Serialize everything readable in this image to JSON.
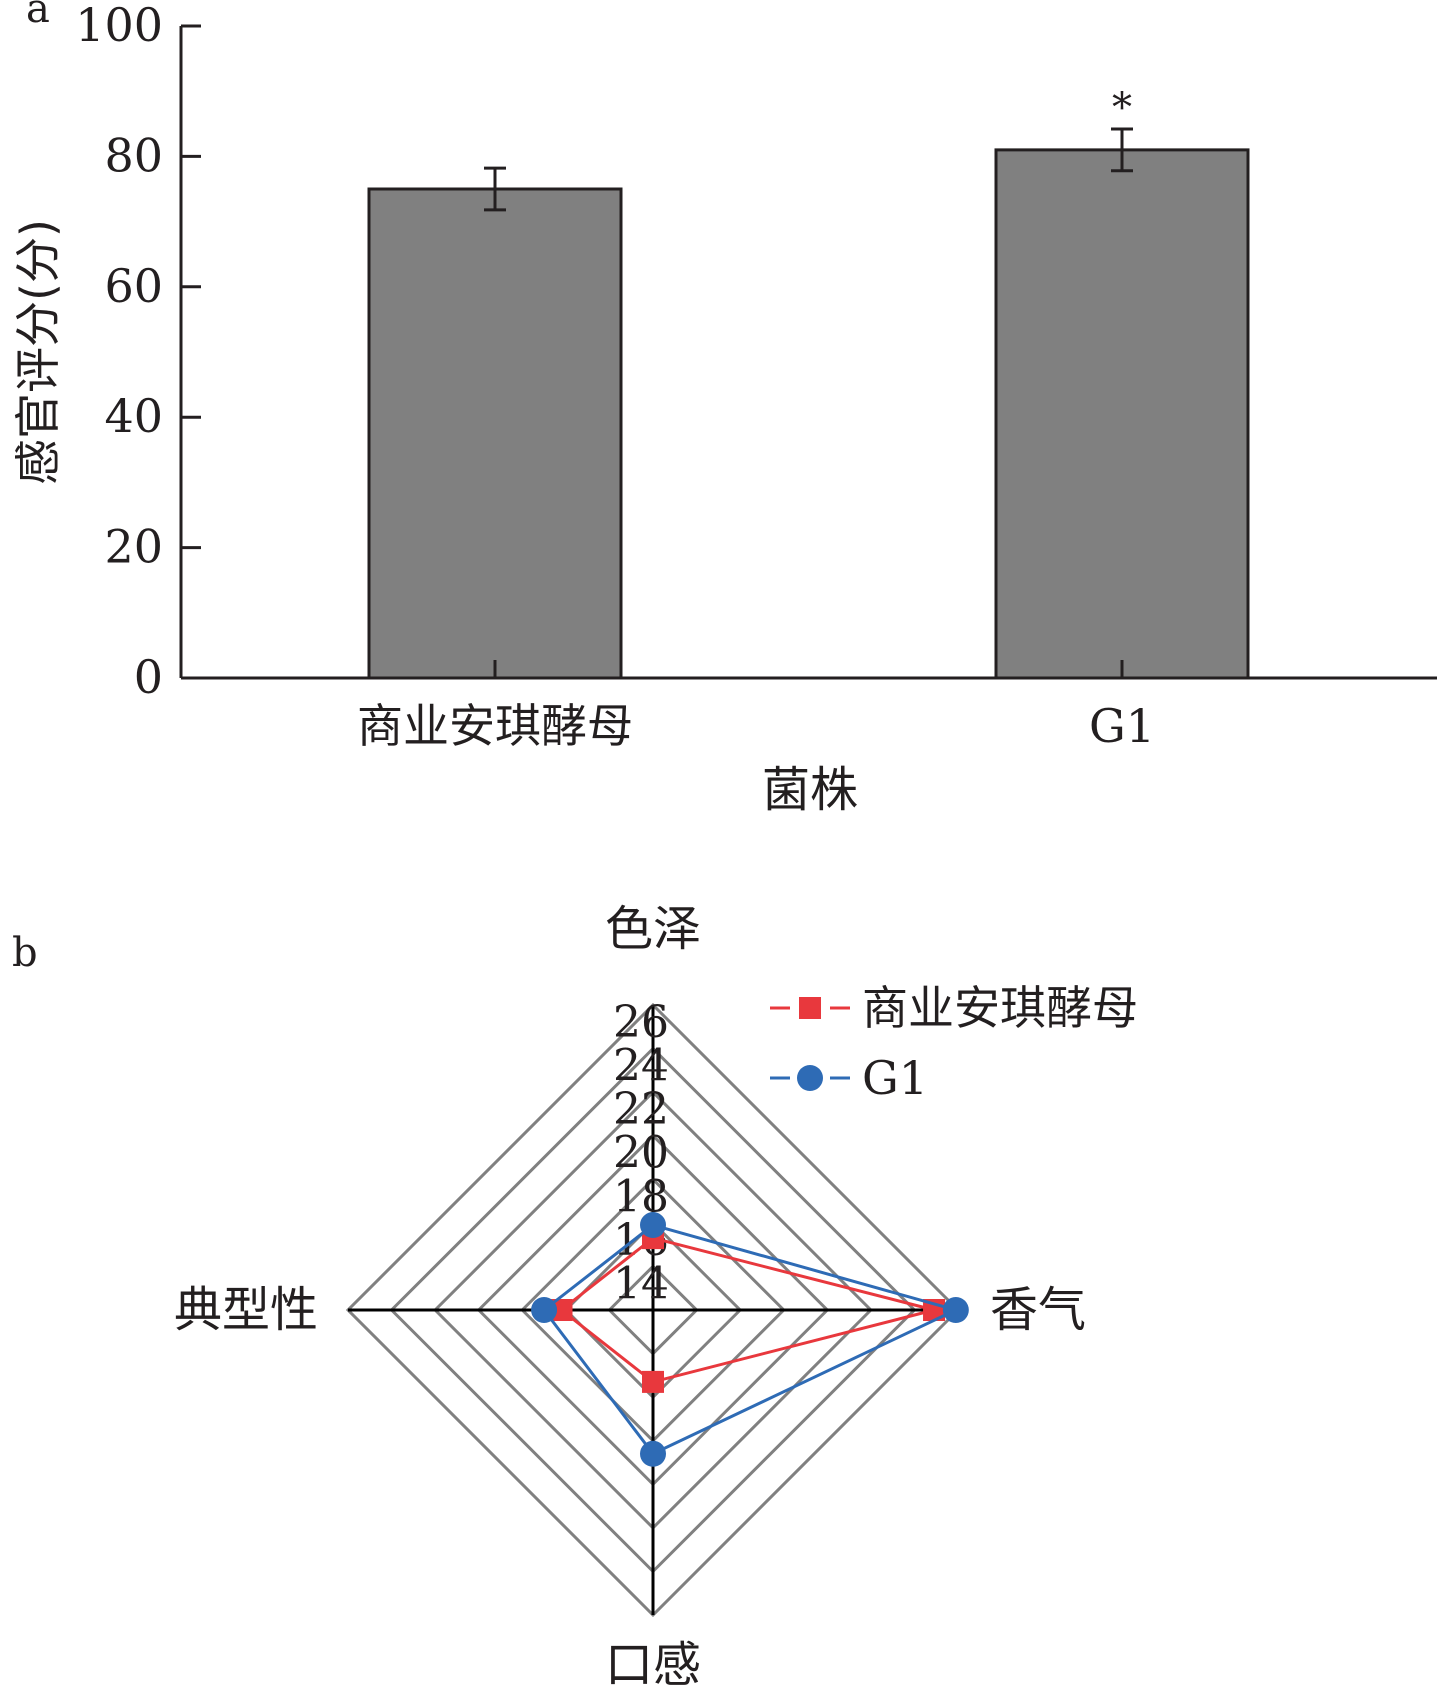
{
  "chart_data": [
    {
      "panel": "a",
      "type": "bar",
      "categories": [
        "商业安琪酵母",
        "G1"
      ],
      "values": [
        75,
        81
      ],
      "errors": [
        3.2,
        3.2
      ],
      "significance": [
        "",
        "*"
      ],
      "xlabel": "菌株",
      "ylabel": "感官评分(分)",
      "ylim": [
        0,
        100
      ],
      "yticks": [
        "0",
        "20",
        "40",
        "60",
        "80",
        "100"
      ],
      "colors": {
        "bar": "#808080",
        "edge": "#231f20"
      }
    },
    {
      "panel": "b",
      "type": "radar",
      "axes": [
        "色泽",
        "香气",
        "口感",
        "典型性"
      ],
      "rlim": [
        12,
        26
      ],
      "rticks": [
        "14",
        "16",
        "18",
        "20",
        "22",
        "24",
        "26"
      ],
      "series": [
        {
          "name": "商业安琪酵母",
          "values": [
            15.3,
            24.9,
            15.3,
            16.2
          ],
          "color": "#e8383d",
          "marker": "square"
        },
        {
          "name": "G1",
          "values": [
            15.9,
            25.9,
            18.6,
            17.0
          ],
          "color": "#2e6bb5",
          "marker": "circle"
        }
      ],
      "legend": "top-right"
    }
  ]
}
